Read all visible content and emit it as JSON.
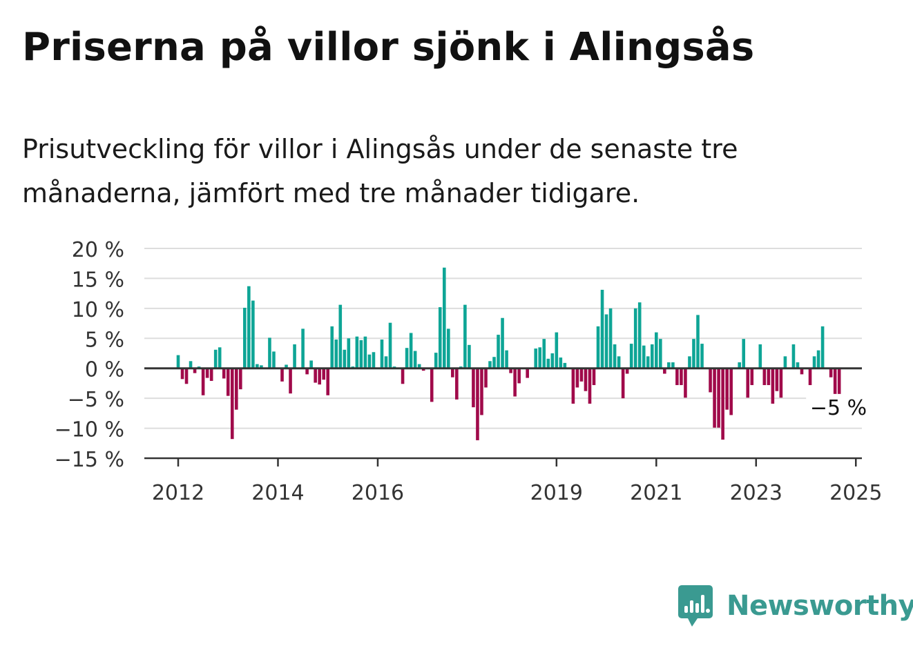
{
  "header": {
    "title": "Priserna på villor sjönk i Alingsås",
    "subtitle": "Prisutveckling för villor i Alingsås under de senaste tre månaderna, jämfört med tre månader tidigare."
  },
  "brand": {
    "name": "Newsworthy",
    "color": "#3a9a91"
  },
  "colors": {
    "positive": "#0ea596",
    "negative": "#a00a4a",
    "grid": "#dddddd",
    "axis": "#333333"
  },
  "chart_data": {
    "type": "bar",
    "start": "2012-01",
    "frequency": "monthly",
    "ylim": [
      -15,
      20
    ],
    "yticks": [
      20,
      15,
      10,
      5,
      0,
      -5,
      -10,
      -15
    ],
    "ytick_labels": [
      "20 %",
      "15 %",
      "10 %",
      "5 %",
      "0 %",
      "−5 %",
      "−10 %",
      "−15 %"
    ],
    "xticks": [
      {
        "month": "2012-01",
        "label": "2012"
      },
      {
        "month": "2014-01",
        "label": "2014"
      },
      {
        "month": "2016-01",
        "label": "2016"
      },
      {
        "month": "2019-08",
        "label": "2019"
      },
      {
        "month": "2021-08",
        "label": "2021"
      },
      {
        "month": "2023-08",
        "label": "2023"
      },
      {
        "month": "2025-08",
        "label": "2025"
      }
    ],
    "annotation": {
      "text": "−5 %"
    },
    "values": [
      2.2,
      -1.8,
      -2.6,
      1.2,
      -0.8,
      0.3,
      -4.5,
      -1.6,
      -2.1,
      3.1,
      3.5,
      -1.7,
      -4.6,
      -11.8,
      -6.9,
      -3.5,
      10.1,
      13.7,
      11.3,
      0.7,
      0.5,
      0,
      5.1,
      2.8,
      0,
      -2.2,
      0.6,
      -4.2,
      4.0,
      0,
      6.6,
      -1.0,
      1.3,
      -2.4,
      -2.7,
      -1.9,
      -4.5,
      7.0,
      4.8,
      10.6,
      3.1,
      5.0,
      0.3,
      5.3,
      4.7,
      5.3,
      2.3,
      2.7,
      0,
      4.8,
      2.0,
      7.6,
      0.3,
      0,
      -2.6,
      3.4,
      5.9,
      2.9,
      0.7,
      -0.4,
      0.1,
      -5.6,
      2.6,
      10.2,
      16.8,
      6.6,
      -1.5,
      -5.2,
      0.3,
      10.6,
      3.9,
      -6.5,
      -12.0,
      -7.8,
      -3.2,
      1.2,
      1.9,
      5.6,
      8.4,
      3.0,
      -0.8,
      -4.7,
      -2.5,
      0,
      -1.6,
      0,
      3.3,
      3.5,
      4.9,
      1.6,
      2.5,
      6.0,
      1.8,
      0.9,
      0,
      -5.9,
      -3.2,
      -2.2,
      -3.8,
      -5.9,
      -2.8,
      7.0,
      13.1,
      9.0,
      10.0,
      4.0,
      2.0,
      -5.0,
      -0.9,
      4.1,
      10.0,
      11.0,
      3.8,
      2.0,
      4.0,
      6.0,
      4.9,
      -0.9,
      1.0,
      1.0,
      -2.8,
      -2.8,
      -4.9,
      2.0,
      4.9,
      8.9,
      4.1,
      0,
      -4.0,
      -9.9,
      -9.9,
      -11.9,
      -6.9,
      -7.8,
      0,
      1.0,
      4.9,
      -4.9,
      -2.8,
      0,
      4.0,
      -2.8,
      -2.8,
      -5.9,
      -3.8,
      -4.9,
      2.0,
      0,
      4.0,
      1.0,
      -1.0,
      0,
      -2.8,
      2.0,
      3.0,
      7.0,
      0,
      -1.5,
      -5.8,
      -4.9
    ]
  }
}
